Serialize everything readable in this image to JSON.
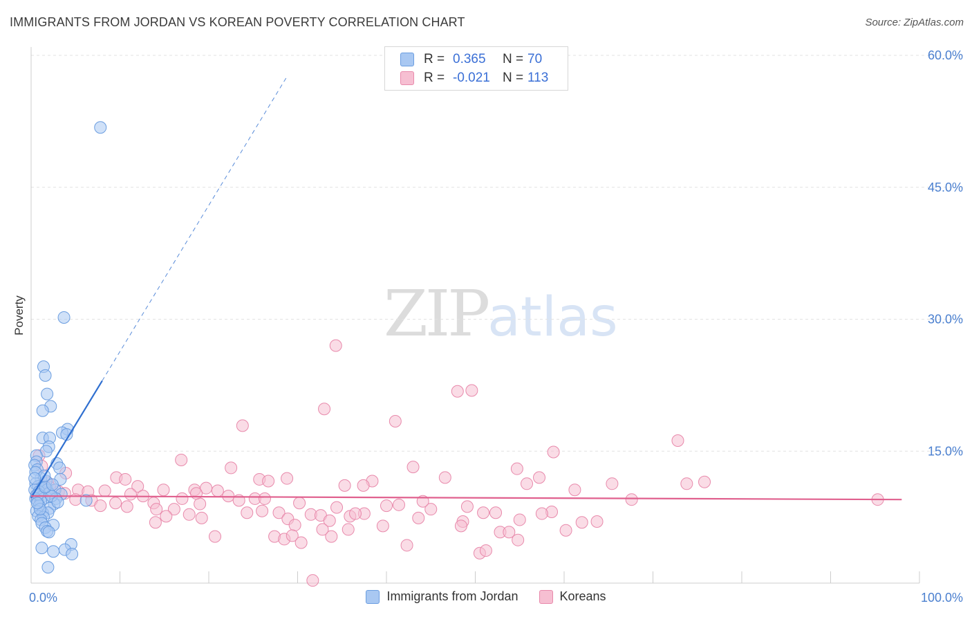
{
  "title": "IMMIGRANTS FROM JORDAN VS KOREAN POVERTY CORRELATION CHART",
  "source": "Source: ZipAtlas.com",
  "watermark": {
    "zip": "ZIP",
    "atlas": "atlas"
  },
  "legend_top": {
    "rows": [
      {
        "r_label": "R =",
        "r_value": "0.365",
        "n_label": "N =",
        "n_value": "70"
      },
      {
        "r_label": "R =",
        "r_value": "-0.021",
        "n_label": "N =",
        "n_value": "113"
      }
    ]
  },
  "legend_bottom": [
    "Immigrants from Jordan",
    "Koreans"
  ],
  "colors": {
    "jordan_fill": "#a9c8f2",
    "jordan_stroke": "#6a9de0",
    "jordan_line": "#2f6fd0",
    "korean_fill": "#f6bfd2",
    "korean_stroke": "#e889ab",
    "korean_line": "#e0608e",
    "grid": "#e2e2e2",
    "tick": "#4a7fcf"
  },
  "chart_data": {
    "type": "scatter",
    "title": "IMMIGRANTS FROM JORDAN VS KOREAN POVERTY CORRELATION CHART",
    "xlabel": "",
    "ylabel": "Poverty",
    "xlim": [
      0,
      100
    ],
    "ylim": [
      0,
      60
    ],
    "y_ticks": [
      {
        "value": 15,
        "label": "15.0%"
      },
      {
        "value": 30,
        "label": "30.0%"
      },
      {
        "value": 45,
        "label": "45.0%"
      },
      {
        "value": 60,
        "label": "60.0%"
      }
    ],
    "x_tick_labels": [
      {
        "value": 0,
        "label": "0.0%"
      },
      {
        "value": 100,
        "label": "100.0%"
      }
    ],
    "series": [
      {
        "name": "Immigrants from Jordan",
        "r": 0.365,
        "n": 70,
        "trend": {
          "x0": 0,
          "y0": 9.7,
          "x1": 8.0,
          "y1": 23.0,
          "x_dash_end": 28.8
        },
        "points": [
          [
            7.8,
            51.8
          ],
          [
            3.7,
            30.2
          ],
          [
            1.4,
            24.6
          ],
          [
            1.6,
            23.6
          ],
          [
            1.8,
            21.5
          ],
          [
            2.2,
            20.1
          ],
          [
            1.3,
            19.6
          ],
          [
            4.1,
            17.5
          ],
          [
            3.5,
            17.1
          ],
          [
            4.0,
            16.9
          ],
          [
            1.3,
            16.5
          ],
          [
            2.1,
            16.5
          ],
          [
            2.0,
            15.5
          ],
          [
            1.7,
            15.0
          ],
          [
            0.6,
            14.5
          ],
          [
            0.6,
            13.8
          ],
          [
            0.4,
            13.4
          ],
          [
            2.9,
            13.6
          ],
          [
            0.7,
            12.9
          ],
          [
            3.2,
            13.1
          ],
          [
            1.1,
            11.9
          ],
          [
            3.3,
            11.8
          ],
          [
            0.5,
            11.3
          ],
          [
            1.7,
            11.6
          ],
          [
            0.8,
            11.0
          ],
          [
            1.3,
            10.8
          ],
          [
            0.4,
            10.6
          ],
          [
            1.8,
            10.6
          ],
          [
            2.7,
            10.6
          ],
          [
            0.9,
            10.4
          ],
          [
            2.0,
            10.2
          ],
          [
            3.4,
            10.1
          ],
          [
            0.6,
            10.0
          ],
          [
            1.2,
            9.8
          ],
          [
            0.5,
            9.6
          ],
          [
            1.4,
            9.6
          ],
          [
            2.8,
            9.6
          ],
          [
            0.7,
            9.4
          ],
          [
            1.1,
            9.3
          ],
          [
            6.2,
            9.4
          ],
          [
            2.6,
            9.0
          ],
          [
            0.9,
            8.8
          ],
          [
            2.1,
            8.5
          ],
          [
            0.6,
            8.2
          ],
          [
            1.3,
            8.0
          ],
          [
            1.9,
            8.0
          ],
          [
            0.8,
            7.6
          ],
          [
            1.4,
            7.5
          ],
          [
            1.1,
            7.2
          ],
          [
            2.5,
            6.6
          ],
          [
            1.2,
            6.8
          ],
          [
            1.6,
            6.3
          ],
          [
            1.8,
            5.9
          ],
          [
            2.0,
            5.8
          ],
          [
            4.5,
            4.4
          ],
          [
            1.2,
            4.0
          ],
          [
            3.8,
            3.8
          ],
          [
            2.5,
            3.6
          ],
          [
            4.6,
            3.3
          ],
          [
            1.9,
            1.8
          ],
          [
            0.5,
            12.6
          ],
          [
            1.5,
            12.2
          ],
          [
            0.8,
            10.1
          ],
          [
            2.3,
            9.9
          ],
          [
            1.0,
            8.4
          ],
          [
            3.0,
            9.2
          ],
          [
            0.4,
            11.9
          ],
          [
            1.6,
            10.9
          ],
          [
            2.4,
            11.2
          ],
          [
            0.7,
            9.1
          ]
        ]
      },
      {
        "name": "Koreans",
        "r": -0.021,
        "n": 113,
        "trend": {
          "x0": 0,
          "y0": 9.9,
          "x1": 98.0,
          "y1": 9.5
        },
        "points": [
          [
            34.3,
            27.0
          ],
          [
            48.0,
            21.8
          ],
          [
            49.6,
            21.9
          ],
          [
            33.0,
            19.8
          ],
          [
            41.0,
            18.4
          ],
          [
            23.8,
            17.9
          ],
          [
            72.8,
            16.2
          ],
          [
            58.8,
            14.9
          ],
          [
            16.9,
            14.0
          ],
          [
            0.9,
            14.5
          ],
          [
            43.0,
            13.2
          ],
          [
            1.2,
            13.3
          ],
          [
            22.5,
            13.1
          ],
          [
            54.7,
            13.0
          ],
          [
            46.6,
            12.0
          ],
          [
            28.8,
            11.9
          ],
          [
            57.2,
            12.0
          ],
          [
            9.6,
            12.0
          ],
          [
            10.6,
            11.8
          ],
          [
            25.7,
            11.8
          ],
          [
            26.7,
            11.6
          ],
          [
            38.4,
            11.6
          ],
          [
            35.3,
            11.1
          ],
          [
            65.4,
            11.3
          ],
          [
            73.8,
            11.3
          ],
          [
            75.8,
            11.5
          ],
          [
            55.8,
            11.3
          ],
          [
            1.9,
            11.4
          ],
          [
            1.1,
            11.1
          ],
          [
            37.4,
            11.1
          ],
          [
            3.9,
            12.5
          ],
          [
            12.0,
            11.0
          ],
          [
            14.9,
            10.6
          ],
          [
            18.4,
            10.6
          ],
          [
            19.7,
            10.8
          ],
          [
            21.0,
            10.5
          ],
          [
            5.3,
            10.6
          ],
          [
            6.4,
            10.4
          ],
          [
            8.3,
            10.5
          ],
          [
            11.2,
            10.1
          ],
          [
            17.0,
            9.6
          ],
          [
            22.2,
            9.9
          ],
          [
            25.2,
            9.6
          ],
          [
            3.1,
            10.4
          ],
          [
            3.8,
            10.2
          ],
          [
            5.0,
            9.5
          ],
          [
            6.8,
            9.4
          ],
          [
            9.5,
            9.1
          ],
          [
            13.8,
            9.1
          ],
          [
            19.0,
            9.0
          ],
          [
            26.3,
            9.6
          ],
          [
            30.2,
            9.1
          ],
          [
            34.4,
            8.6
          ],
          [
            40.0,
            8.8
          ],
          [
            49.1,
            8.7
          ],
          [
            58.6,
            8.1
          ],
          [
            61.2,
            10.6
          ],
          [
            67.6,
            9.5
          ],
          [
            95.3,
            9.5
          ],
          [
            7.8,
            8.8
          ],
          [
            10.8,
            8.7
          ],
          [
            14.1,
            8.4
          ],
          [
            16.1,
            8.4
          ],
          [
            24.3,
            8.0
          ],
          [
            27.9,
            8.0
          ],
          [
            31.5,
            7.8
          ],
          [
            32.6,
            7.7
          ],
          [
            35.9,
            7.6
          ],
          [
            37.5,
            7.9
          ],
          [
            45.0,
            8.4
          ],
          [
            50.9,
            8.0
          ],
          [
            52.3,
            8.0
          ],
          [
            57.5,
            7.9
          ],
          [
            15.2,
            7.6
          ],
          [
            17.8,
            7.8
          ],
          [
            19.2,
            7.4
          ],
          [
            28.9,
            7.3
          ],
          [
            33.6,
            7.1
          ],
          [
            43.6,
            7.4
          ],
          [
            48.6,
            7.0
          ],
          [
            55.0,
            7.2
          ],
          [
            62.0,
            6.9
          ],
          [
            63.7,
            7.0
          ],
          [
            14.0,
            6.9
          ],
          [
            29.7,
            6.6
          ],
          [
            39.6,
            6.5
          ],
          [
            48.4,
            6.5
          ],
          [
            60.2,
            6.0
          ],
          [
            35.7,
            6.1
          ],
          [
            52.8,
            5.8
          ],
          [
            53.8,
            5.8
          ],
          [
            20.7,
            5.3
          ],
          [
            27.4,
            5.3
          ],
          [
            28.5,
            5.0
          ],
          [
            29.4,
            5.4
          ],
          [
            33.8,
            5.3
          ],
          [
            54.8,
            4.9
          ],
          [
            30.4,
            4.6
          ],
          [
            42.3,
            4.3
          ],
          [
            50.5,
            3.4
          ],
          [
            51.2,
            3.7
          ],
          [
            31.7,
            0.3
          ],
          [
            36.5,
            7.9
          ],
          [
            41.4,
            8.9
          ],
          [
            44.1,
            9.3
          ],
          [
            0.6,
            9.9
          ],
          [
            2.1,
            10.9
          ],
          [
            12.6,
            9.9
          ],
          [
            23.4,
            9.4
          ],
          [
            32.8,
            6.1
          ],
          [
            18.6,
            10.2
          ],
          [
            26.0,
            8.2
          ]
        ]
      }
    ]
  }
}
